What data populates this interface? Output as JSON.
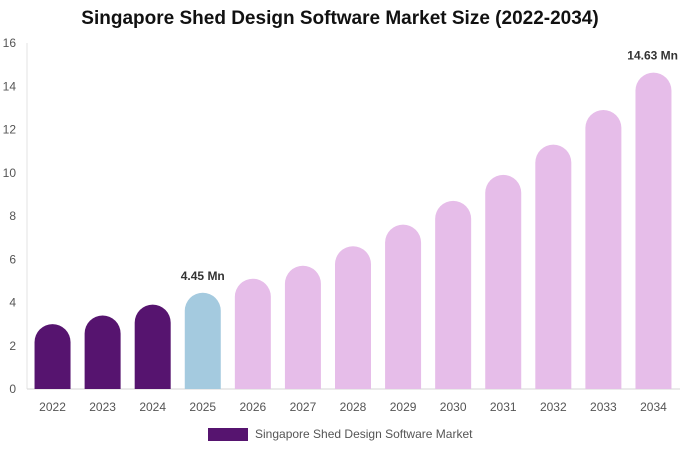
{
  "chart_data": {
    "type": "bar",
    "title": "Singapore Shed Design Software Market Size (2022-2034)",
    "categories": [
      "2022",
      "2023",
      "2024",
      "2025",
      "2026",
      "2027",
      "2028",
      "2029",
      "2030",
      "2031",
      "2032",
      "2033",
      "2034"
    ],
    "series": [
      {
        "name": "Singapore Shed Design Software Market",
        "values": [
          3.0,
          3.4,
          3.9,
          4.45,
          5.1,
          5.7,
          6.6,
          7.6,
          8.7,
          9.9,
          11.3,
          12.9,
          14.63
        ]
      }
    ],
    "data_labels": [
      {
        "category": "2025",
        "text": "4.45 Mn"
      },
      {
        "category": "2034",
        "text": "14.63 Mn"
      }
    ],
    "ylim": [
      0,
      16
    ],
    "yticks": [
      0,
      2,
      4,
      6,
      8,
      10,
      12,
      14,
      16
    ],
    "xlabel": "",
    "ylabel": "",
    "grid": false,
    "legend_position": "bottom",
    "colors": {
      "historical": "#56146f",
      "base_year": "#a4cadf",
      "forecast": "#e6bde9"
    },
    "category_colors": [
      "historical",
      "historical",
      "historical",
      "base_year",
      "forecast",
      "forecast",
      "forecast",
      "forecast",
      "forecast",
      "forecast",
      "forecast",
      "forecast",
      "forecast"
    ]
  }
}
